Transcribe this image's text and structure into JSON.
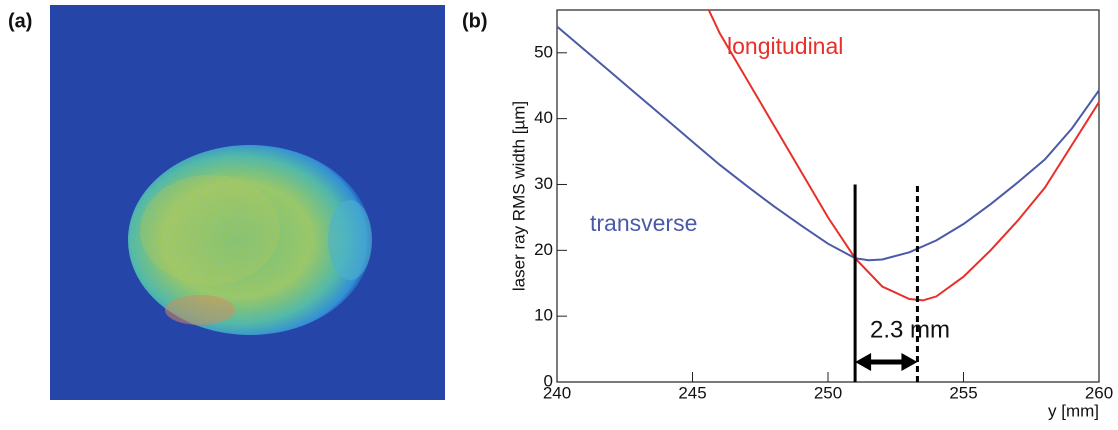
{
  "panel_labels": [
    "(a)",
    "(b)"
  ],
  "chart_data": {
    "type": "line",
    "y_label": "laser ray RMS width [µm]",
    "x_label": "y [mm]",
    "xlim": [
      240,
      260
    ],
    "ylim": [
      0,
      56.5
    ],
    "xticks": [
      240,
      245,
      250,
      255,
      260
    ],
    "yticks": [
      0,
      10,
      20,
      30,
      40,
      50
    ],
    "series": [
      {
        "name": "transverse",
        "color": "#4a5aa8",
        "x": [
          240,
          241,
          242,
          243,
          244,
          245,
          246,
          247,
          248,
          249,
          250,
          251,
          251.5,
          252,
          253,
          254,
          255,
          256,
          257,
          258,
          259,
          260
        ],
        "values": [
          54,
          50.5,
          47,
          43.5,
          40,
          36.5,
          33,
          29.8,
          26.7,
          23.8,
          21,
          18.8,
          18.5,
          18.6,
          19.7,
          21.5,
          24,
          27,
          30.3,
          33.8,
          38.5,
          44.3
        ]
      },
      {
        "name": "longitudinal",
        "color": "#e8302a",
        "x": [
          245.6,
          246,
          247,
          248,
          249,
          250,
          251,
          252,
          253,
          253.5,
          254,
          255,
          256,
          257,
          258,
          259,
          260
        ],
        "values": [
          56.5,
          53,
          46,
          39,
          32,
          25,
          18.8,
          14.5,
          12.6,
          12.4,
          13,
          16,
          20,
          24.5,
          29.5,
          36,
          42.5
        ]
      }
    ],
    "markers": [
      {
        "x": 251,
        "top": 30,
        "style": "solid"
      },
      {
        "x": 253.3,
        "top": 30,
        "style": "dashed"
      }
    ],
    "annotation": "2.3 mm"
  }
}
